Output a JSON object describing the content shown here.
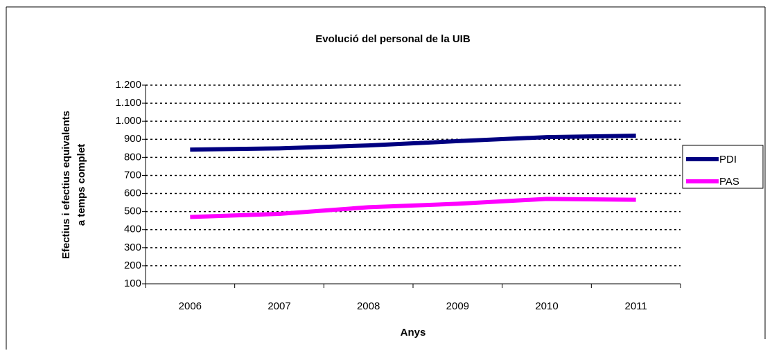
{
  "chart_data": {
    "type": "line",
    "title": "Evolució del personal de la UIB",
    "ylabel": [
      "Efectius i efectius equivalents",
      "a temps complet"
    ],
    "xlabel": "Anys",
    "categories": [
      "2006",
      "2007",
      "2008",
      "2009",
      "2010",
      "2011"
    ],
    "series": [
      {
        "name": "PDI",
        "color": "#000080",
        "values": [
          843,
          850,
          866,
          890,
          912,
          920
        ]
      },
      {
        "name": "PAS",
        "color": "#ff00ff",
        "values": [
          470,
          487,
          524,
          543,
          570,
          565
        ]
      }
    ],
    "ylim": [
      100,
      1200
    ],
    "yticks": [
      100,
      200,
      300,
      400,
      500,
      600,
      700,
      800,
      900,
      {
        "value": 1000,
        "label": "1.000"
      },
      {
        "value": 1100,
        "label": "1.100"
      },
      {
        "value": 1200,
        "label": "1.200"
      }
    ],
    "grid": true,
    "legend": "right"
  }
}
